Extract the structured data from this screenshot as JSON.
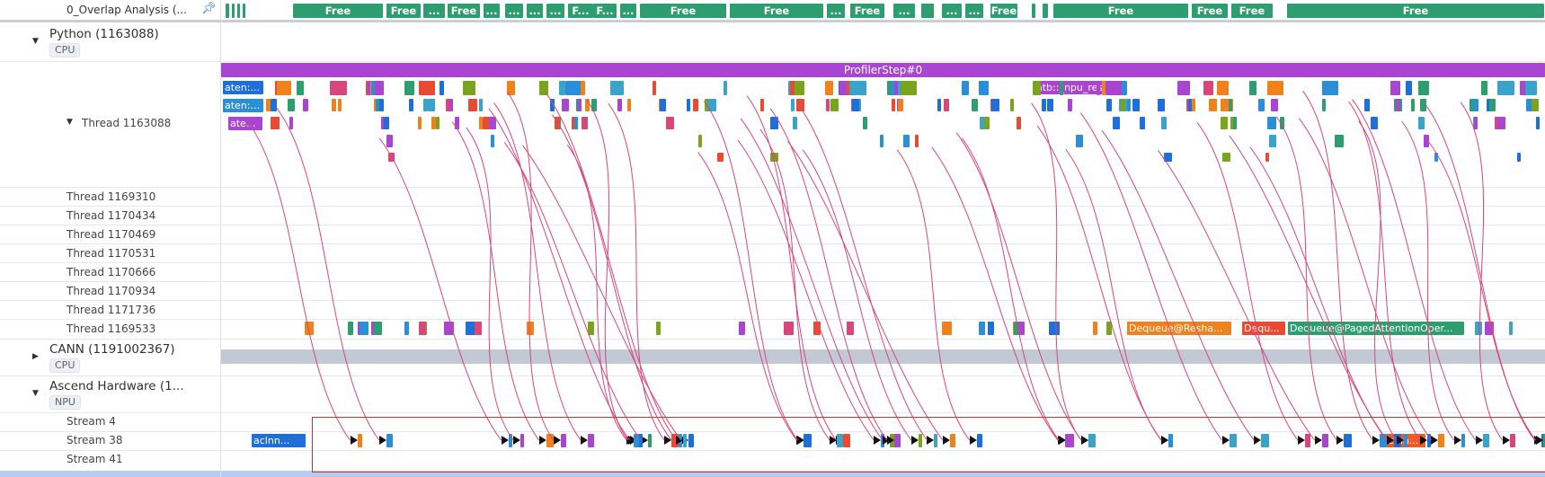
{
  "overlap": {
    "label": "0_Overlap Analysis (...",
    "free_label": "Free",
    "short_labels": [
      "F...",
      "...",
      "Fr..."
    ]
  },
  "python": {
    "name": "Python (1163088)",
    "tag": "CPU",
    "main_thread": "Thread 1163088",
    "step_label": "ProfilerStep#0",
    "labels": {
      "a1": "aten:...",
      "a2": "aten:...",
      "a3": "ate...",
      "atb": "atb::_npu_resh...",
      "dots": "...",
      "a": "a..."
    }
  },
  "threads": [
    "Thread 1169310",
    "Thread 1170434",
    "Thread 1170469",
    "Thread 1170531",
    "Thread 1170666",
    "Thread 1170934",
    "Thread 1171736",
    "Thread 1169533"
  ],
  "dequeue": [
    "Dequeue@Resha...",
    "Dequ...",
    "Dequeue@PagedAttentionOper..."
  ],
  "cann": {
    "name": "CANN (1191002367)",
    "tag": "CPU"
  },
  "ascend": {
    "name": "Ascend Hardware (1...",
    "tag": "NPU",
    "streams": [
      "Stream 4",
      "Stream 38",
      "Stream 41"
    ],
    "stream_labels": [
      "aclnn...",
      "aclnn..."
    ]
  },
  "colors": {
    "free": "#2e9e70",
    "step": "#a945d1",
    "flow": "#d9467a",
    "selection": "#e02b2b",
    "cann_bar": "#c3c8d6"
  }
}
